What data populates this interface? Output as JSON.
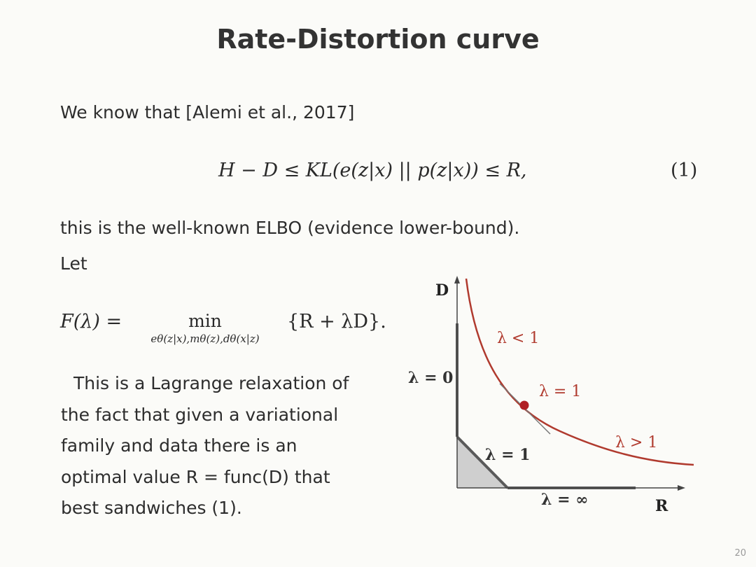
{
  "slide": {
    "title": "Rate-Distortion curve",
    "intro": "We know that [Alemi et al., 2017]",
    "equation_lhs": "H − D ≤ KL(e(z|x) || p(z|x)) ≤ R,",
    "equation_number": "(1)",
    "elbo_line": "this is the well-known ELBO (evidence lower-bound).",
    "let_line": "Let",
    "f_lhs": "F(λ) =",
    "min_word": "min",
    "min_subscript": "eθ(z|x),mθ(z),dθ(x|z)",
    "f_rhs": "{R + λD}.",
    "paragraph_lines": [
      "This is a Lagrange relaxation of",
      "the fact that given a variational",
      "family and data there is an",
      "optimal value R = func(D) that",
      "best sandwiches (1)."
    ],
    "page_number": "20"
  },
  "figure": {
    "axis_y_label": "D",
    "axis_x_label": "R",
    "label_lambda_lt1": "λ < 1",
    "label_lambda_eq1_curve": "λ = 1",
    "label_lambda_gt1": "λ > 1",
    "label_lambda_0": "λ = 0",
    "label_lambda_eq1_triangle": "λ = 1",
    "label_lambda_inf": "λ = ∞",
    "colors": {
      "curve": "#b03a2e",
      "point": "#b01f24",
      "axes": "#444444",
      "region_fill": "#cfcfcf",
      "bound_line": "#5a5a5a"
    }
  }
}
